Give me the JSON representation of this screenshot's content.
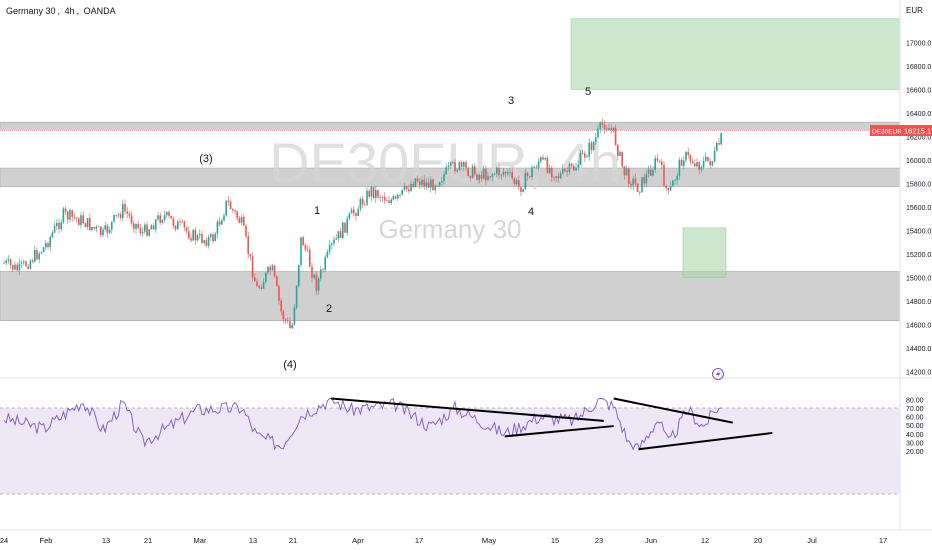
{
  "header": {
    "symbol_name": "Germany 30",
    "timeframe": "4h",
    "broker": "OANDA"
  },
  "watermark": {
    "ticker": "DE30EUR, 4h",
    "name": "Germany 30"
  },
  "price_axis": {
    "currency": "EUR",
    "ticks": [
      "14200.0",
      "14400.0",
      "14600.0",
      "14800.0",
      "15000.0",
      "15200.0",
      "15400.0",
      "15600.0",
      "15800.0",
      "16000.0",
      "16200.0",
      "16400.0",
      "16600.0",
      "16800.0",
      "17000.0"
    ],
    "last_symbol": "DE30EUR",
    "last_price": "16215.1"
  },
  "time_axis": {
    "labels": [
      "24",
      "Feb",
      "13",
      "21",
      "Mar",
      "13",
      "21",
      "Apr",
      "17",
      "May",
      "15",
      "23",
      "Jun",
      "12",
      "20",
      "Jul",
      "17"
    ]
  },
  "rsi_axis": {
    "ticks": [
      "20.00",
      "30.00",
      "40.00",
      "50.00",
      "60.00",
      "70.00",
      "80.00"
    ]
  },
  "wave_labels": [
    "(3)",
    "(4)",
    "1",
    "2",
    "3",
    "4",
    "5"
  ],
  "colors": {
    "candle_up": "#26a69a",
    "candle_down": "#ef5350",
    "zone_gray": "#b7b7b7",
    "zone_green": "#a5d6a7",
    "rsi_line": "#7e57c2",
    "rsi_band": "#ede7f6",
    "price_line": "#ef5350",
    "trendline": "#000000"
  },
  "chart_data": [
    {
      "type": "candlestick",
      "title": "Germany 30",
      "ylabel": "EUR",
      "ylim": [
        14060,
        17200
      ],
      "x": [
        "Jan 24",
        "Feb",
        "Feb 13",
        "Feb 21",
        "Mar",
        "Mar 13",
        "Mar 21",
        "Apr",
        "Apr 17",
        "May",
        "May 15",
        "May 23",
        "Jun",
        "Jun 12",
        "Jun 20",
        "Jul",
        "Jul 17"
      ],
      "close_path": [
        {
          "x": "Jan 24",
          "y": 15120
        },
        {
          "x": "Jan 27",
          "y": 15060
        },
        {
          "x": "Feb",
          "y": 15250
        },
        {
          "x": "Feb 5",
          "y": 15530
        },
        {
          "x": "Feb 9",
          "y": 15480
        },
        {
          "x": "Feb 13",
          "y": 15360
        },
        {
          "x": "Feb 17",
          "y": 15580
        },
        {
          "x": "Feb 21",
          "y": 15380
        },
        {
          "x": "Feb 25",
          "y": 15530
        },
        {
          "x": "Mar",
          "y": 15330
        },
        {
          "x": "Mar 4",
          "y": 15320
        },
        {
          "x": "Mar 7",
          "y": 15640
        },
        {
          "x": "Mar 10",
          "y": 15450
        },
        {
          "x": "Mar 13",
          "y": 14900
        },
        {
          "x": "Mar 16",
          "y": 15080
        },
        {
          "x": "Mar 18",
          "y": 14690
        },
        {
          "x": "Mar 20",
          "y": 14540
        },
        {
          "x": "Mar 22",
          "y": 15350
        },
        {
          "x": "Mar 25",
          "y": 14930
        },
        {
          "x": "Mar 28",
          "y": 15250
        },
        {
          "x": "Apr",
          "y": 15520
        },
        {
          "x": "Apr 5",
          "y": 15740
        },
        {
          "x": "Apr 10",
          "y": 15640
        },
        {
          "x": "Apr 14",
          "y": 15840
        },
        {
          "x": "Apr 17",
          "y": 15780
        },
        {
          "x": "Apr 22",
          "y": 15950
        },
        {
          "x": "Apr 27",
          "y": 15870
        },
        {
          "x": "May",
          "y": 15900
        },
        {
          "x": "May 4",
          "y": 15760
        },
        {
          "x": "May 8",
          "y": 16000
        },
        {
          "x": "May 12",
          "y": 15860
        },
        {
          "x": "May 15",
          "y": 15930
        },
        {
          "x": "May 19",
          "y": 16150
        },
        {
          "x": "May 21",
          "y": 16320
        },
        {
          "x": "May 23",
          "y": 16220
        },
        {
          "x": "May 25",
          "y": 15900
        },
        {
          "x": "May 28",
          "y": 15760
        },
        {
          "x": "Jun",
          "y": 16010
        },
        {
          "x": "Jun 3",
          "y": 15690
        },
        {
          "x": "Jun 6",
          "y": 16040
        },
        {
          "x": "Jun 9",
          "y": 15960
        },
        {
          "x": "Jun 12",
          "y": 16000
        },
        {
          "x": "Jun 14",
          "y": 16215.1
        }
      ],
      "zones": [
        {
          "kind": "resistance",
          "from": 16260,
          "to": 16320
        },
        {
          "kind": "support",
          "from": 15770,
          "to": 15930
        },
        {
          "kind": "support",
          "from": 14630,
          "to": 15050
        },
        {
          "kind": "target",
          "from": 16600,
          "to": 17200
        },
        {
          "kind": "target",
          "from": 15000,
          "to": 15420
        }
      ],
      "last_price": 16215.1
    },
    {
      "type": "line",
      "title": "RSI",
      "ylim": [
        16,
        84
      ],
      "bands": [
        30,
        70
      ],
      "rsi_path": [
        {
          "x": "Jan 24",
          "y": 58
        },
        {
          "x": "Feb",
          "y": 46
        },
        {
          "x": "Feb 9",
          "y": 78
        },
        {
          "x": "Feb 13",
          "y": 44
        },
        {
          "x": "Feb 17",
          "y": 75
        },
        {
          "x": "Feb 21",
          "y": 30
        },
        {
          "x": "Mar",
          "y": 68
        },
        {
          "x": "Mar 10",
          "y": 70
        },
        {
          "x": "Mar 13",
          "y": 38
        },
        {
          "x": "Mar 18",
          "y": 26
        },
        {
          "x": "Mar 22",
          "y": 62
        },
        {
          "x": "Mar 28",
          "y": 80
        },
        {
          "x": "Apr",
          "y": 68
        },
        {
          "x": "Apr 10",
          "y": 74
        },
        {
          "x": "Apr 17",
          "y": 48
        },
        {
          "x": "Apr 22",
          "y": 70
        },
        {
          "x": "May",
          "y": 40
        },
        {
          "x": "May 8",
          "y": 60
        },
        {
          "x": "May 15",
          "y": 55
        },
        {
          "x": "May 20",
          "y": 80
        },
        {
          "x": "May 23",
          "y": 72
        },
        {
          "x": "May 26",
          "y": 30
        },
        {
          "x": "May 28",
          "y": 22
        },
        {
          "x": "Jun",
          "y": 58
        },
        {
          "x": "Jun 3",
          "y": 28
        },
        {
          "x": "Jun 7",
          "y": 68
        },
        {
          "x": "Jun 10",
          "y": 48
        },
        {
          "x": "Jun 13",
          "y": 71
        },
        {
          "x": "Jun 14",
          "y": 67
        }
      ],
      "trendlines": [
        {
          "from": {
            "x": "Mar 28",
            "y": 81
          },
          "to": {
            "x": "May 21",
            "y": 55
          }
        },
        {
          "from": {
            "x": "May 1",
            "y": 37
          },
          "to": {
            "x": "May 23",
            "y": 49
          }
        },
        {
          "from": {
            "x": "May 23",
            "y": 81
          },
          "to": {
            "x": "Jun 16",
            "y": 53
          }
        },
        {
          "from": {
            "x": "May 28",
            "y": 22
          },
          "to": {
            "x": "Jun 24",
            "y": 41
          }
        }
      ]
    }
  ]
}
